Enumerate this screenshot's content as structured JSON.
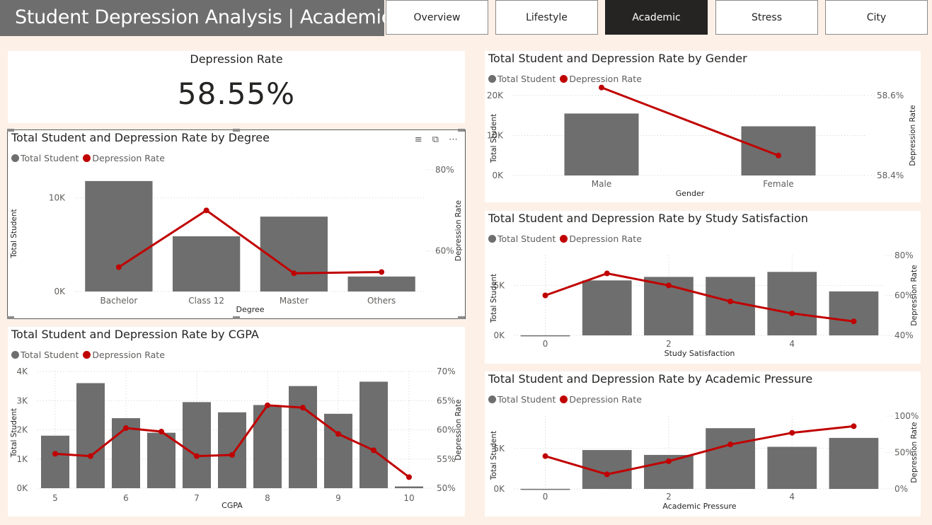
{
  "header": {
    "title": "Student Depression Analysis | Academic",
    "tabs": [
      {
        "label": "Overview",
        "active": false
      },
      {
        "label": "Lifestyle",
        "active": false
      },
      {
        "label": "Academic",
        "active": true
      },
      {
        "label": "Stress",
        "active": false
      },
      {
        "label": "City",
        "active": false
      }
    ]
  },
  "colors": {
    "bar": "#6e6e6e",
    "line": "#c00000",
    "background": "#fdf0e7",
    "grid": "#d0d0d0"
  },
  "kpi": {
    "label": "Depression Rate",
    "value": "58.55%"
  },
  "legend": {
    "bar": "Total Student",
    "line": "Depression Rate"
  },
  "chart_data": [
    {
      "id": "degree",
      "type": "bar+line",
      "title": "Total Student and Depression Rate by Degree",
      "xlabel": "Degree",
      "ylabel": "Total Student",
      "y2label": "Depression Rate",
      "categories": [
        "Bachelor",
        "Class 12",
        "Master",
        "Others"
      ],
      "series": [
        {
          "name": "Total Student",
          "kind": "bar",
          "axis": "left",
          "values": [
            11800,
            5900,
            8000,
            1600
          ]
        },
        {
          "name": "Depression Rate",
          "kind": "line",
          "axis": "right",
          "values": [
            56.0,
            70.0,
            54.5,
            54.8
          ]
        }
      ],
      "ylim": [
        0,
        13000
      ],
      "y2lim": [
        50,
        80
      ],
      "yticks": [
        0,
        10000
      ],
      "ytick_labels": [
        "0K",
        "10K"
      ],
      "y2ticks": [
        60,
        80
      ],
      "y2tick_labels": [
        "60%",
        "80%"
      ]
    },
    {
      "id": "cgpa",
      "type": "bar+line",
      "title": "Total Student and Depression Rate by CGPA",
      "xlabel": "CGPA",
      "ylabel": "Total Student",
      "y2label": "Depression Rate",
      "x": [
        5,
        5.5,
        6,
        6.5,
        7,
        7.5,
        8,
        8.5,
        9,
        9.5,
        10
      ],
      "xticks": [
        5,
        6,
        7,
        8,
        9,
        10
      ],
      "series": [
        {
          "name": "Total Student",
          "kind": "bar",
          "axis": "left",
          "values": [
            1800,
            3600,
            2400,
            1900,
            2950,
            2600,
            2850,
            3500,
            2550,
            3650,
            60
          ]
        },
        {
          "name": "Depression Rate",
          "kind": "line",
          "axis": "right",
          "values": [
            55.9,
            55.5,
            60.3,
            59.7,
            55.5,
            55.7,
            64.2,
            63.8,
            59.3,
            56.5,
            51.9
          ]
        }
      ],
      "ylim": [
        0,
        4000
      ],
      "y2lim": [
        50,
        70
      ],
      "yticks": [
        0,
        1000,
        2000,
        3000,
        4000
      ],
      "ytick_labels": [
        "0K",
        "1K",
        "2K",
        "3K",
        "4K"
      ],
      "y2ticks": [
        50,
        55,
        60,
        65,
        70
      ],
      "y2tick_labels": [
        "50%",
        "55%",
        "60%",
        "65%",
        "70%"
      ]
    },
    {
      "id": "gender",
      "type": "bar+line",
      "title": "Total Student and Depression Rate by Gender",
      "xlabel": "Gender",
      "ylabel": "Total Student",
      "y2label": "Depression Rate",
      "categories": [
        "Male",
        "Female"
      ],
      "series": [
        {
          "name": "Total Student",
          "kind": "bar",
          "axis": "left",
          "values": [
            15500,
            12300
          ]
        },
        {
          "name": "Depression Rate",
          "kind": "line",
          "axis": "right",
          "values": [
            58.62,
            58.45
          ]
        }
      ],
      "ylim": [
        0,
        20000
      ],
      "y2lim": [
        58.4,
        58.6
      ],
      "yticks": [
        0,
        10000,
        20000
      ],
      "ytick_labels": [
        "0K",
        "10K",
        "20K"
      ],
      "y2ticks": [
        58.4,
        58.6
      ],
      "y2tick_labels": [
        "58.4%",
        "58.6%"
      ]
    },
    {
      "id": "satisfaction",
      "type": "bar+line",
      "title": "Total Student and Depression Rate by Study Satisfaction",
      "xlabel": "Study Satisfaction",
      "ylabel": "Total Student",
      "y2label": "Depression Rate",
      "x": [
        0,
        1,
        2,
        3,
        4,
        5
      ],
      "xticks": [
        0,
        2,
        4
      ],
      "series": [
        {
          "name": "Total Student",
          "kind": "bar",
          "axis": "left",
          "values": [
            10,
            5500,
            5850,
            5850,
            6350,
            4400
          ]
        },
        {
          "name": "Depression Rate",
          "kind": "line",
          "axis": "right",
          "values": [
            60,
            71,
            65,
            57,
            51,
            47
          ]
        }
      ],
      "ylim": [
        0,
        8000
      ],
      "y2lim": [
        40,
        80
      ],
      "yticks": [
        0,
        5000
      ],
      "ytick_labels": [
        "0K",
        "5K"
      ],
      "y2ticks": [
        40,
        60,
        80
      ],
      "y2tick_labels": [
        "40%",
        "60%",
        "80%"
      ]
    },
    {
      "id": "pressure",
      "type": "bar+line",
      "title": "Total Student and Depression Rate by Academic Pressure",
      "xlabel": "Academic Pressure",
      "ylabel": "Total Student",
      "y2label": "Depression Rate",
      "x": [
        0,
        1,
        2,
        3,
        4,
        5
      ],
      "xticks": [
        0,
        2,
        4
      ],
      "series": [
        {
          "name": "Total Student",
          "kind": "bar",
          "axis": "left",
          "values": [
            10,
            4800,
            4200,
            7500,
            5200,
            6300
          ]
        },
        {
          "name": "Depression Rate",
          "kind": "line",
          "axis": "right",
          "values": [
            45,
            20,
            38,
            61,
            77,
            86
          ]
        }
      ],
      "ylim": [
        0,
        9000
      ],
      "y2lim": [
        0,
        100
      ],
      "yticks": [
        0,
        5000
      ],
      "ytick_labels": [
        "0K",
        "5K"
      ],
      "y2ticks": [
        0,
        50,
        100
      ],
      "y2tick_labels": [
        "0%",
        "50%",
        "100%"
      ]
    }
  ]
}
